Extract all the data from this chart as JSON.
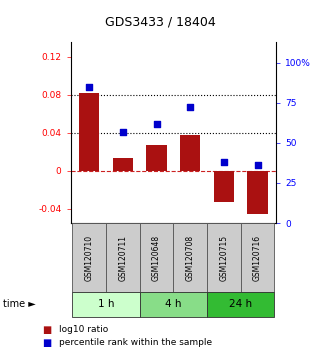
{
  "title": "GDS3433 / 18404",
  "samples": [
    "GSM120710",
    "GSM120711",
    "GSM120648",
    "GSM120708",
    "GSM120715",
    "GSM120716"
  ],
  "log10_ratio": [
    0.082,
    0.013,
    0.027,
    0.038,
    -0.033,
    -0.045
  ],
  "percentile_rank": [
    85,
    57,
    62,
    72,
    38,
    36
  ],
  "time_groups": [
    {
      "label": "1 h",
      "indices": [
        0,
        1
      ],
      "color": "#ccffcc"
    },
    {
      "label": "4 h",
      "indices": [
        2,
        3
      ],
      "color": "#88dd88"
    },
    {
      "label": "24 h",
      "indices": [
        4,
        5
      ],
      "color": "#33bb33"
    }
  ],
  "bar_color": "#aa1111",
  "dot_color": "#0000cc",
  "ylim_left": [
    -0.055,
    0.135
  ],
  "ylim_right": [
    0,
    112.5
  ],
  "yticks_left": [
    -0.04,
    0.0,
    0.04,
    0.08,
    0.12
  ],
  "yticks_right": [
    0,
    25,
    50,
    75,
    100
  ],
  "ytick_labels_left": [
    "-0.04",
    "0",
    "0.04",
    "0.08",
    "0.12"
  ],
  "ytick_labels_right": [
    "0",
    "25",
    "50",
    "75",
    "100%"
  ],
  "hlines": [
    0.08,
    0.04
  ],
  "dashed_zero_color": "#cc2222",
  "sample_box_color": "#cccccc",
  "sample_box_edge": "#555555",
  "bar_width": 0.6
}
